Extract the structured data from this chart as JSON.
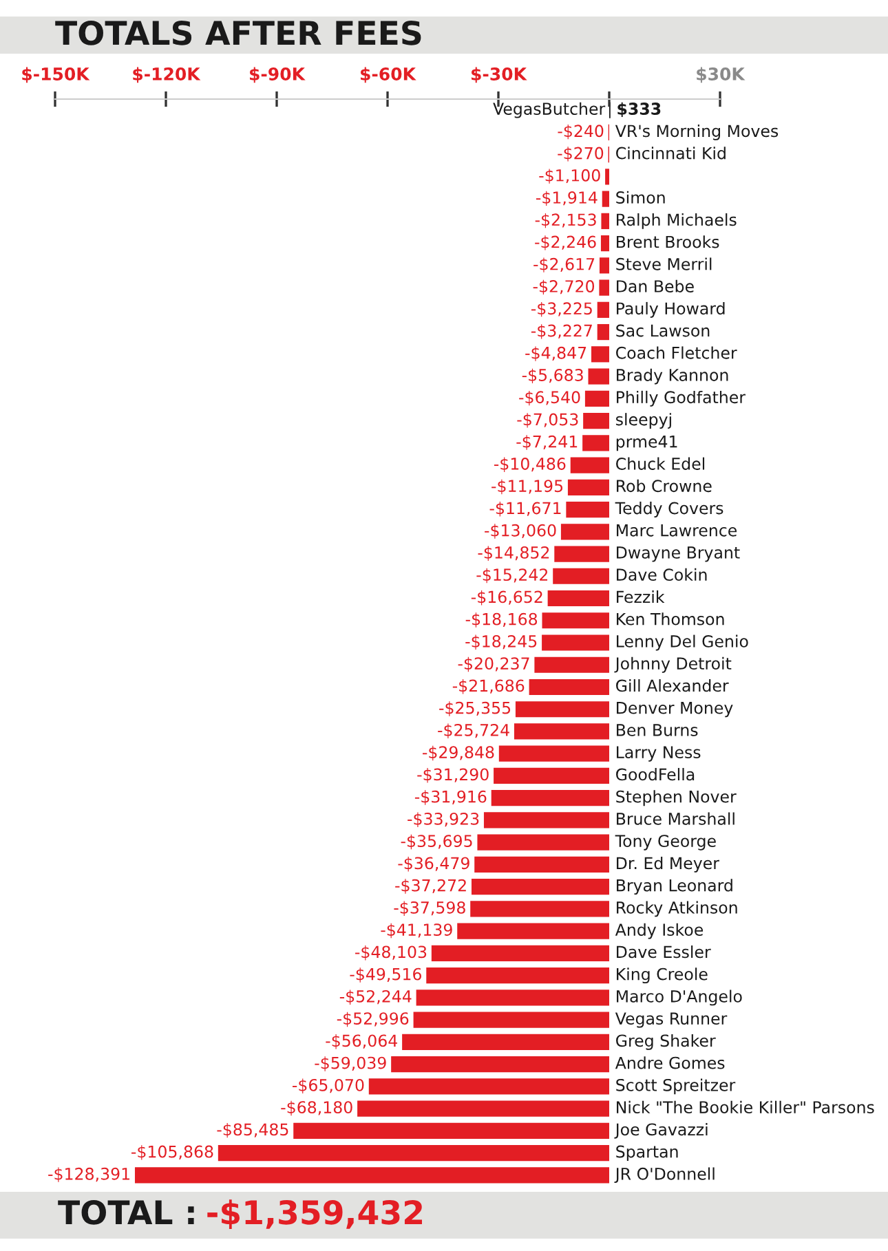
{
  "chart_data": {
    "type": "bar",
    "orientation": "horizontal",
    "title": "TOTALS AFTER FEES",
    "annotations": [
      "TOTAL :",
      "-$1,359,432"
    ],
    "categories": [
      "VegasButcher",
      "VR's Morning Moves",
      "Cincinnati Kid",
      null,
      "Simon",
      "Ralph Michaels",
      "Brent Brooks",
      "Steve Merril",
      "Dan Bebe",
      "Pauly Howard",
      "Sac Lawson",
      "Coach Fletcher",
      "Brady Kannon",
      "Philly Godfather",
      "sleepyj",
      "prme41",
      "Chuck Edel",
      "Rob Crowne",
      "Teddy Covers",
      "Marc Lawrence",
      "Dwayne Bryant",
      "Dave Cokin",
      "Fezzik",
      "Ken Thomson",
      "Lenny Del Genio",
      "Johnny Detroit",
      "Gill Alexander",
      "Denver Money",
      "Ben Burns",
      "Larry Ness",
      "GoodFella",
      "Stephen Nover",
      "Bruce Marshall",
      "Tony George",
      "Dr. Ed Meyer",
      "Bryan Leonard",
      "Rocky Atkinson",
      "Andy Iskoe",
      "Dave Essler",
      "King Creole",
      "Marco D'Angelo",
      "Vegas Runner",
      "Greg Shaker",
      "Andre Gomes",
      "Scott Spreitzer",
      "Nick \"The Bookie Killer\" Parsons",
      "Joe Gavazzi",
      "Spartan",
      "JR O'Donnell"
    ],
    "values": [
      333,
      -240,
      -270,
      -1100,
      -1914,
      -2153,
      -2246,
      -2617,
      -2720,
      -3225,
      -3227,
      -4847,
      -5683,
      -6540,
      -7053,
      -7241,
      -10486,
      -11195,
      -11671,
      -13060,
      -14852,
      -15242,
      -16652,
      -18168,
      -18245,
      -20237,
      -21686,
      -25355,
      -25724,
      -29848,
      -31290,
      -31916,
      -33923,
      -35695,
      -36479,
      -37272,
      -37598,
      -41139,
      -48103,
      -49516,
      -52244,
      -52996,
      -56064,
      -59039,
      -65070,
      -68180,
      -85485,
      -105868,
      -128391
    ],
    "value_labels": [
      "$333",
      "-$240",
      "-$270",
      "-$1,100",
      "-$1,914",
      "-$2,153",
      "-$2,246",
      "-$2,617",
      "-$2,720",
      "-$3,225",
      "-$3,227",
      "-$4,847",
      "-$5,683",
      "-$6,540",
      "-$7,053",
      "-$7,241",
      "-$10,486",
      "-$11,195",
      "-$11,671",
      "-$13,060",
      "-$14,852",
      "-$15,242",
      "-$16,652",
      "-$18,168",
      "-$18,245",
      "-$20,237",
      "-$21,686",
      "-$25,355",
      "-$25,724",
      "-$29,848",
      "-$31,290",
      "-$31,916",
      "-$33,923",
      "-$35,695",
      "-$36,479",
      "-$37,272",
      "-$37,598",
      "-$41,139",
      "-$48,103",
      "-$49,516",
      "-$52,244",
      "-$52,996",
      "-$56,064",
      "-$59,039",
      "-$65,070",
      "-$68,180",
      "-$85,485",
      "-$105,868",
      "-$128,391"
    ],
    "color": "#e31e24",
    "colors": [
      "#1a1a1a",
      "#e31e24",
      "#e31e24",
      "#e31e24",
      "#e31e24",
      "#e31e24",
      "#e31e24",
      "#e31e24",
      "#e31e24",
      "#e31e24",
      "#e31e24",
      "#e31e24",
      "#e31e24",
      "#e31e24",
      "#e31e24",
      "#e31e24",
      "#e31e24",
      "#e31e24",
      "#e31e24",
      "#e31e24",
      "#e31e24",
      "#e31e24",
      "#e31e24",
      "#e31e24",
      "#e31e24",
      "#e31e24",
      "#e31e24",
      "#e31e24",
      "#e31e24",
      "#e31e24",
      "#e31e24",
      "#e31e24",
      "#e31e24",
      "#e31e24",
      "#e31e24",
      "#e31e24",
      "#e31e24",
      "#e31e24",
      "#e31e24",
      "#e31e24",
      "#e31e24",
      "#e31e24",
      "#e31e24",
      "#e31e24",
      "#e31e24",
      "#e31e24",
      "#e31e24",
      "#e31e24",
      "#e31e24"
    ],
    "xlim": [
      -150000,
      30000
    ],
    "xticks": [
      {
        "value": -150000,
        "label": "$-150K"
      },
      {
        "value": -120000,
        "label": "$-120K"
      },
      {
        "value": -90000,
        "label": "$-90K"
      },
      {
        "value": -60000,
        "label": "$-60K"
      },
      {
        "value": -30000,
        "label": "$-30K"
      },
      {
        "value": 0,
        "label": null
      },
      {
        "value": 30000,
        "label": "$30K"
      }
    ],
    "grid": false,
    "legend": false
  }
}
